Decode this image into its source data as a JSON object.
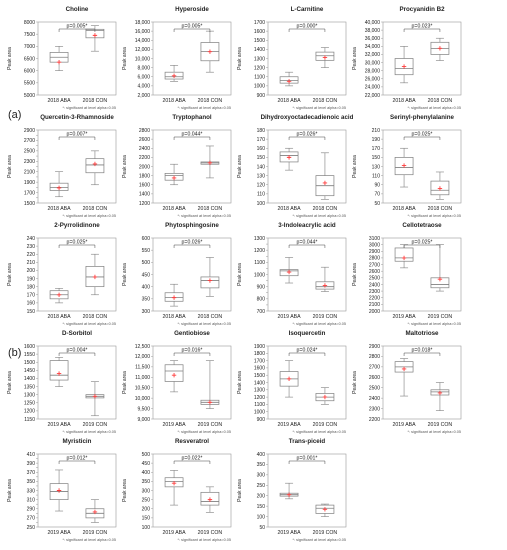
{
  "figure": {
    "section_a": "(a)",
    "section_b": "(b)",
    "footnote": "*: significant at level alpha=0.05",
    "ylabel": "Peak area",
    "colors": {
      "box": "#7f7f7f",
      "mean": "#ff3b3b",
      "bracket": "#444444",
      "text": "#222222"
    }
  },
  "chart_data": [
    {
      "type": "box",
      "title": "Choline",
      "categories": [
        "2018 ABA",
        "2018 CON"
      ],
      "p_label": "p=0.005*",
      "ylabel": "Peak area",
      "yticks": [
        5000,
        5500,
        6000,
        6500,
        7000,
        7500,
        8000
      ],
      "ytick_labels": [
        "5000",
        "5500",
        "6000",
        "6500",
        "7000",
        "7500",
        "8000"
      ],
      "boxes": [
        {
          "min": 6000,
          "q1": 6350,
          "median": 6550,
          "q3": 6750,
          "max": 7000,
          "mean": 6350
        },
        {
          "min": 6800,
          "q1": 7350,
          "median": 7650,
          "q3": 7700,
          "max": 7850,
          "mean": 7450
        }
      ]
    },
    {
      "type": "box",
      "title": "Hyperoside",
      "categories": [
        "2018 ABA",
        "2018 CON"
      ],
      "p_label": "p=0.005*",
      "ylabel": "Peak area",
      "yticks": [
        2000,
        4000,
        6000,
        8000,
        10000,
        12000,
        14000,
        16000,
        18000
      ],
      "ytick_labels": [
        "2,000",
        "4,000",
        "6,000",
        "8,000",
        "10,000",
        "12,000",
        "14,000",
        "16,000",
        "18,000"
      ],
      "boxes": [
        {
          "min": 5000,
          "q1": 5500,
          "median": 6000,
          "q3": 7000,
          "max": 8500,
          "mean": 6200
        },
        {
          "min": 7000,
          "q1": 9500,
          "median": 11500,
          "q3": 13500,
          "max": 16000,
          "mean": 11500
        }
      ]
    },
    {
      "type": "box",
      "title": "L-Carnitine",
      "categories": [
        "2018 ABA",
        "2018 CON"
      ],
      "p_label": "p=0.000*",
      "ylabel": "Peak area",
      "yticks": [
        900,
        1000,
        1100,
        1200,
        1300,
        1400,
        1500,
        1600,
        1700
      ],
      "ytick_labels": [
        "900",
        "1000",
        "1100",
        "1200",
        "1300",
        "1400",
        "1500",
        "1600",
        "1700"
      ],
      "boxes": [
        {
          "min": 1000,
          "q1": 1030,
          "median": 1060,
          "q3": 1100,
          "max": 1150,
          "mean": 1050
        },
        {
          "min": 1200,
          "q1": 1280,
          "median": 1330,
          "q3": 1370,
          "max": 1420,
          "mean": 1310
        }
      ]
    },
    {
      "type": "box",
      "title": "Procyanidin B2",
      "categories": [
        "2018 ABA",
        "2018 CON"
      ],
      "p_label": "p=0.023*",
      "ylabel": "Peak area",
      "yticks": [
        22000,
        24000,
        26000,
        28000,
        30000,
        32000,
        34000,
        36000,
        38000,
        40000
      ],
      "ytick_labels": [
        "22,000",
        "24,000",
        "26,000",
        "28,000",
        "30,000",
        "32,000",
        "34,000",
        "36,000",
        "38,000",
        "40,000"
      ],
      "boxes": [
        {
          "min": 25000,
          "q1": 27000,
          "median": 28500,
          "q3": 31000,
          "max": 34000,
          "mean": 29000
        },
        {
          "min": 30500,
          "q1": 32000,
          "median": 33500,
          "q3": 35000,
          "max": 36000,
          "mean": 33500
        }
      ]
    },
    {
      "type": "box",
      "title": "Quercetin-3-Rhamnoside",
      "categories": [
        "2018 ABA",
        "2018 CON"
      ],
      "p_label": "p=0.007*",
      "ylabel": "Peak area",
      "yticks": [
        1500,
        1600,
        1700,
        1800,
        1900,
        2000,
        2100,
        2200,
        2300,
        2400,
        2500,
        2600,
        2700,
        2800,
        2900
      ],
      "ytick_labels": [
        "1500",
        "",
        "1700",
        "",
        "1900",
        "",
        "2100",
        "",
        "2300",
        "",
        "2500",
        "",
        "2700",
        "",
        "2900"
      ],
      "boxes": [
        {
          "min": 1620,
          "q1": 1740,
          "median": 1800,
          "q3": 1880,
          "max": 2100,
          "mean": 1790
        },
        {
          "min": 1850,
          "q1": 2080,
          "median": 2230,
          "q3": 2350,
          "max": 2500,
          "mean": 2250
        }
      ]
    },
    {
      "type": "box",
      "title": "Tryptophanol",
      "categories": [
        "2018 ABA",
        "2018 CON"
      ],
      "p_label": "p=0.044*",
      "ylabel": "Peak area",
      "yticks": [
        1200,
        1400,
        1600,
        1800,
        2000,
        2200,
        2400,
        2600,
        2800
      ],
      "ytick_labels": [
        "1200",
        "1400",
        "1600",
        "1800",
        "2000",
        "2200",
        "2400",
        "2600",
        "2800"
      ],
      "boxes": [
        {
          "min": 1600,
          "q1": 1700,
          "median": 1800,
          "q3": 1850,
          "max": 2050,
          "mean": 1750
        },
        {
          "min": 1750,
          "q1": 2050,
          "median": 2080,
          "q3": 2100,
          "max": 2450,
          "mean": 2080
        }
      ]
    },
    {
      "type": "box",
      "title": "Dihydroxyoctadecadienoic acid",
      "categories": [
        "2018 ABA",
        "2018 CON"
      ],
      "p_label": "p=0.026*",
      "ylabel": "Peak area",
      "yticks": [
        100,
        110,
        120,
        130,
        140,
        150,
        160,
        170,
        180
      ],
      "ytick_labels": [
        "100",
        "110",
        "120",
        "130",
        "140",
        "150",
        "160",
        "170",
        "180"
      ],
      "boxes": [
        {
          "min": 136,
          "q1": 145,
          "median": 152,
          "q3": 156,
          "max": 160,
          "mean": 150
        },
        {
          "min": 104,
          "q1": 108,
          "median": 119,
          "q3": 130,
          "max": 155,
          "mean": 122
        }
      ]
    },
    {
      "type": "box",
      "title": "Serinyl-phenylalanine",
      "categories": [
        "2018 ABA",
        "2018 CON"
      ],
      "p_label": "p=0.025*",
      "ylabel": "Peak area",
      "yticks": [
        50,
        70,
        90,
        110,
        130,
        150,
        170,
        190,
        210
      ],
      "ytick_labels": [
        "50",
        "70",
        "90",
        "110",
        "130",
        "150",
        "170",
        "190",
        "210"
      ],
      "boxes": [
        {
          "min": 85,
          "q1": 112,
          "median": 128,
          "q3": 150,
          "max": 170,
          "mean": 132
        },
        {
          "min": 58,
          "q1": 68,
          "median": 78,
          "q3": 98,
          "max": 118,
          "mean": 82
        }
      ]
    },
    {
      "type": "box",
      "title": "2-Pyrrolidinone",
      "categories": [
        "2018 ABA",
        "2018 CON"
      ],
      "p_label": "p=0.025*",
      "ylabel": "Peak area",
      "yticks": [
        150,
        160,
        170,
        180,
        190,
        200,
        210,
        220,
        230,
        240
      ],
      "ytick_labels": [
        "150",
        "160",
        "170",
        "180",
        "190",
        "200",
        "210",
        "220",
        "230",
        "240"
      ],
      "boxes": [
        {
          "min": 160,
          "q1": 165,
          "median": 170,
          "q3": 175,
          "max": 178,
          "mean": 170
        },
        {
          "min": 170,
          "q1": 180,
          "median": 192,
          "q3": 205,
          "max": 220,
          "mean": 192
        }
      ]
    },
    {
      "type": "box",
      "title": "Phytosphingosine",
      "categories": [
        "2018 ABA",
        "2018 CON"
      ],
      "p_label": "p=0.026*",
      "ylabel": "Peak area",
      "yticks": [
        300,
        350,
        400,
        450,
        500,
        550,
        600
      ],
      "ytick_labels": [
        "300",
        "350",
        "400",
        "450",
        "500",
        "550",
        "600"
      ],
      "boxes": [
        {
          "min": 320,
          "q1": 340,
          "median": 355,
          "q3": 375,
          "max": 410,
          "mean": 355
        },
        {
          "min": 360,
          "q1": 395,
          "median": 425,
          "q3": 440,
          "max": 520,
          "mean": 425
        }
      ]
    },
    {
      "type": "box",
      "title": "3-Indoleacrylic acid",
      "categories": [
        "2019 ABA",
        "2019 CON"
      ],
      "p_label": "p=0.044*",
      "ylabel": "Peak area",
      "yticks": [
        700,
        750,
        800,
        850,
        900,
        950,
        1000,
        1050,
        1100,
        1150,
        1200,
        1250,
        1300
      ],
      "ytick_labels": [
        "700",
        "",
        "800",
        "",
        "900",
        "",
        "1000",
        "",
        "1100",
        "",
        "1200",
        "",
        "1300"
      ],
      "boxes": [
        {
          "min": 930,
          "q1": 990,
          "median": 1030,
          "q3": 1040,
          "max": 1140,
          "mean": 1020
        },
        {
          "min": 860,
          "q1": 880,
          "median": 900,
          "q3": 940,
          "max": 1060,
          "mean": 910
        }
      ]
    },
    {
      "type": "box",
      "title": "Cellotetraose",
      "categories": [
        "2019 ABA",
        "2019 CON"
      ],
      "p_label": "p=0.025*",
      "ylabel": "Peak area",
      "yticks": [
        2000,
        2100,
        2200,
        2300,
        2400,
        2500,
        2600,
        2700,
        2800,
        2900,
        3000,
        3100
      ],
      "ytick_labels": [
        "2000",
        "2100",
        "2200",
        "2300",
        "2400",
        "2500",
        "2600",
        "2700",
        "2800",
        "2900",
        "3000",
        "3100"
      ],
      "boxes": [
        {
          "min": 2650,
          "q1": 2750,
          "median": 2800,
          "q3": 2950,
          "max": 3000,
          "mean": 2800
        },
        {
          "min": 2300,
          "q1": 2350,
          "median": 2400,
          "q3": 2500,
          "max": 3000,
          "mean": 2480
        }
      ]
    },
    {
      "type": "box",
      "title": "D-Sorbitol",
      "categories": [
        "2019 ABA",
        "2019 CON"
      ],
      "p_label": "p=0.004*",
      "ylabel": "Peak area",
      "yticks": [
        1150,
        1200,
        1250,
        1300,
        1350,
        1400,
        1450,
        1500,
        1550,
        1600
      ],
      "ytick_labels": [
        "1150",
        "1200",
        "1250",
        "1300",
        "1350",
        "1400",
        "1450",
        "1500",
        "1550",
        "1600"
      ],
      "boxes": [
        {
          "min": 1350,
          "q1": 1390,
          "median": 1420,
          "q3": 1510,
          "max": 1530,
          "mean": 1430
        },
        {
          "min": 1170,
          "q1": 1280,
          "median": 1290,
          "q3": 1300,
          "max": 1380,
          "mean": 1290
        }
      ]
    },
    {
      "type": "box",
      "title": "Gentiobiose",
      "categories": [
        "2019 ABA",
        "2019 CON"
      ],
      "p_label": "p=0.016*",
      "ylabel": "Peak area",
      "yticks": [
        9000,
        9500,
        10000,
        10500,
        11000,
        11500,
        12000,
        12500
      ],
      "ytick_labels": [
        "9,000",
        "9,500",
        "10,000",
        "10,500",
        "11,000",
        "11,500",
        "12,000",
        "12,500"
      ],
      "boxes": [
        {
          "min": 10300,
          "q1": 10800,
          "median": 11300,
          "q3": 11600,
          "max": 11800,
          "mean": 11100
        },
        {
          "min": 9500,
          "q1": 9700,
          "median": 9800,
          "q3": 9900,
          "max": 11800,
          "mean": 9800
        }
      ]
    },
    {
      "type": "box",
      "title": "Isoquercetin",
      "categories": [
        "2019 ABA",
        "2019 CON"
      ],
      "p_label": "p=0.024*",
      "ylabel": "Peak area",
      "yticks": [
        900,
        1000,
        1100,
        1200,
        1300,
        1400,
        1500,
        1600,
        1700,
        1800,
        1900
      ],
      "ytick_labels": [
        "900",
        "1000",
        "1100",
        "1200",
        "1300",
        "1400",
        "1500",
        "1600",
        "1700",
        "1800",
        "1900"
      ],
      "boxes": [
        {
          "min": 1200,
          "q1": 1350,
          "median": 1450,
          "q3": 1550,
          "max": 1700,
          "mean": 1450
        },
        {
          "min": 1100,
          "q1": 1150,
          "median": 1200,
          "q3": 1250,
          "max": 1330,
          "mean": 1200
        }
      ]
    },
    {
      "type": "box",
      "title": "Maltotriose",
      "categories": [
        "2019 ABA",
        "2019 CON"
      ],
      "p_label": "p=0.018*",
      "ylabel": "Peak area",
      "yticks": [
        2200,
        2300,
        2400,
        2500,
        2600,
        2700,
        2800,
        2900
      ],
      "ytick_labels": [
        "2200",
        "2300",
        "2400",
        "2500",
        "2600",
        "2700",
        "2800",
        "2900"
      ],
      "boxes": [
        {
          "min": 2420,
          "q1": 2650,
          "median": 2700,
          "q3": 2750,
          "max": 2780,
          "mean": 2680
        },
        {
          "min": 2280,
          "q1": 2430,
          "median": 2460,
          "q3": 2480,
          "max": 2550,
          "mean": 2450
        }
      ]
    },
    {
      "type": "box",
      "title": "Myristicin",
      "categories": [
        "2019 ABA",
        "2019 CON"
      ],
      "p_label": "p=0.012*",
      "ylabel": "Peak area",
      "yticks": [
        250,
        260,
        270,
        280,
        290,
        300,
        310,
        320,
        330,
        340,
        350,
        360,
        370,
        380,
        390,
        400,
        410
      ],
      "ytick_labels": [
        "250",
        "",
        "270",
        "",
        "290",
        "",
        "310",
        "",
        "330",
        "",
        "350",
        "",
        "370",
        "",
        "390",
        "",
        "410"
      ],
      "boxes": [
        {
          "min": 285,
          "q1": 310,
          "median": 328,
          "q3": 345,
          "max": 375,
          "mean": 330
        },
        {
          "min": 260,
          "q1": 270,
          "median": 280,
          "q3": 290,
          "max": 310,
          "mean": 283
        }
      ]
    },
    {
      "type": "box",
      "title": "Resveratrol",
      "categories": [
        "2019 ABA",
        "2019 CON"
      ],
      "p_label": "p=0.022*",
      "ylabel": "Peak area",
      "yticks": [
        100,
        150,
        200,
        250,
        300,
        350,
        400,
        450,
        500
      ],
      "ytick_labels": [
        "100",
        "150",
        "200",
        "250",
        "300",
        "350",
        "400",
        "450",
        "500"
      ],
      "boxes": [
        {
          "min": 220,
          "q1": 320,
          "median": 350,
          "q3": 370,
          "max": 410,
          "mean": 340
        },
        {
          "min": 180,
          "q1": 220,
          "median": 240,
          "q3": 290,
          "max": 320,
          "mean": 250
        }
      ]
    },
    {
      "type": "box",
      "title": "Trans-piceid",
      "categories": [
        "2019 ABA",
        "2019 CON"
      ],
      "p_label": "p=0.001*",
      "ylabel": "Peak area",
      "yticks": [
        50,
        100,
        150,
        200,
        250,
        300,
        350,
        400
      ],
      "ytick_labels": [
        "50",
        "100",
        "150",
        "200",
        "250",
        "300",
        "350",
        "400"
      ],
      "boxes": [
        {
          "min": 185,
          "q1": 198,
          "median": 205,
          "q3": 212,
          "max": 260,
          "mean": 205
        },
        {
          "min": 100,
          "q1": 115,
          "median": 140,
          "q3": 155,
          "max": 160,
          "mean": 135
        }
      ]
    }
  ]
}
